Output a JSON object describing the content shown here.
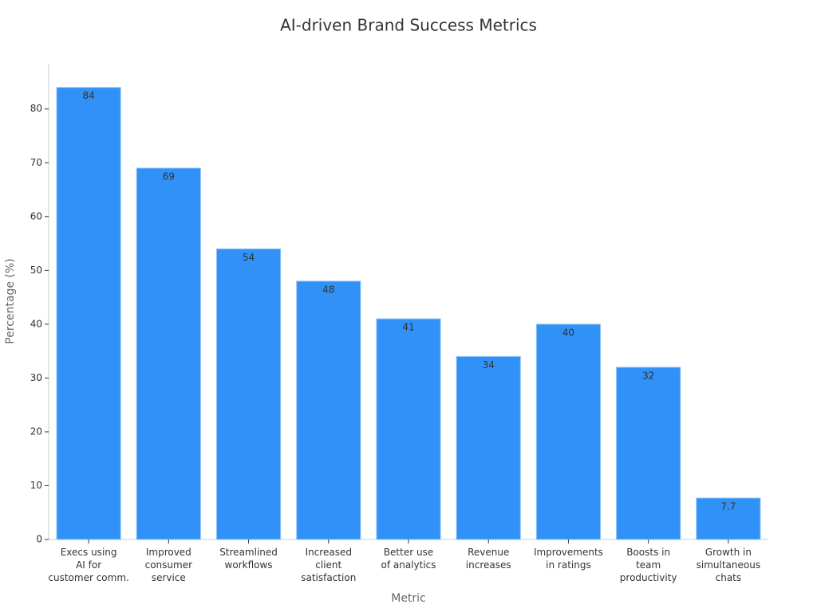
{
  "chart_data": {
    "type": "bar",
    "title": "AI-driven Brand Success Metrics",
    "x_label": "Metric",
    "y_label": "Percentage (%)",
    "categories": [
      "Execs using\nAI for\ncustomer comm.",
      "Improved\nconsumer\nservice",
      "Streamlined\nworkflows",
      "Increased\nclient\nsatisfaction",
      "Better use\nof analytics",
      "Revenue\nincreases",
      "Improvements\nin ratings",
      "Boosts in\nteam\nproductivity",
      "Growth in\nsimultaneous\nchats"
    ],
    "values": [
      84,
      69,
      54,
      48,
      41,
      34,
      40,
      32,
      7.7
    ],
    "color": "#3091f7",
    "ylim": [
      0,
      88.4
    ],
    "yticks": [
      0,
      10,
      20,
      30,
      40,
      50,
      60,
      70,
      80
    ]
  }
}
